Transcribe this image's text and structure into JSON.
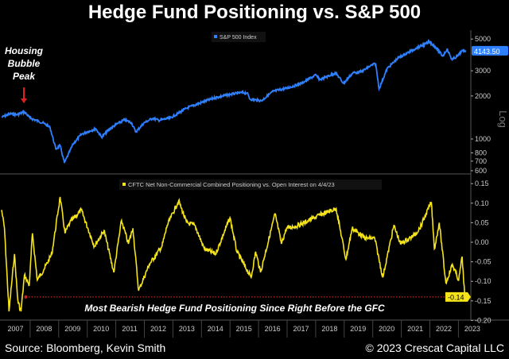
{
  "title": "Hedge Fund Positioning vs. S&P 500",
  "source": "Source: Bloomberg, Kevin Smith",
  "copyright": "© 2023 Crescat Capital LLC",
  "chart_data": [
    {
      "type": "line",
      "panel": "top",
      "legend": "S&P 500 Index",
      "scale": "log",
      "scale_label": "Log",
      "y_ticks": [
        "5000",
        "3000",
        "2000",
        "1000",
        "800",
        "700",
        "600"
      ],
      "y_tick_values": [
        5000,
        3000,
        2000,
        1000,
        800,
        700,
        600
      ],
      "ylim": [
        580,
        5600
      ],
      "last_value_label": "4143.50",
      "color": "#2f80ff",
      "annotation": {
        "text_lines": [
          "Housing",
          "Bubble",
          "Peak"
        ],
        "x": 2007.8,
        "arrow_color": "#e02020"
      },
      "series": [
        {
          "x": [
            2007.0,
            2007.3,
            2007.55,
            2007.8,
            2008.0,
            2008.3,
            2008.5,
            2008.7,
            2008.9,
            2009.05,
            2009.2,
            2009.5,
            2009.8,
            2010.0,
            2010.3,
            2010.5,
            2010.8,
            2011.0,
            2011.3,
            2011.55,
            2011.7,
            2012.0,
            2012.3,
            2012.5,
            2012.9,
            2013.2,
            2013.5,
            2014.0,
            2014.5,
            2015.0,
            2015.4,
            2015.6,
            2015.7,
            2016.1,
            2016.5,
            2017.0,
            2017.5,
            2018.0,
            2018.15,
            2018.7,
            2018.98,
            2019.3,
            2019.6,
            2019.9,
            2020.1,
            2020.22,
            2020.5,
            2020.9,
            2021.5,
            2021.99,
            2022.2,
            2022.45,
            2022.6,
            2022.78,
            2023.0,
            2023.1,
            2023.27
          ],
          "y": [
            1420,
            1500,
            1480,
            1550,
            1400,
            1330,
            1280,
            1200,
            850,
            900,
            680,
            920,
            1080,
            1120,
            1180,
            1030,
            1180,
            1260,
            1360,
            1300,
            1120,
            1300,
            1400,
            1350,
            1400,
            1520,
            1650,
            1800,
            1950,
            2050,
            2110,
            2100,
            1900,
            1850,
            2150,
            2270,
            2450,
            2800,
            2600,
            2900,
            2450,
            2900,
            2950,
            3230,
            3380,
            2240,
            3100,
            3700,
            4300,
            4770,
            4400,
            3800,
            4250,
            3580,
            3850,
            4100,
            4143.5
          ]
        }
      ]
    },
    {
      "type": "line",
      "panel": "bottom",
      "legend": "CFTC Net Non-Commercial Combined Positioning vs. Open Interest on 4/4/23",
      "y_ticks": [
        "0.15",
        "0.10",
        "0.05",
        "0.00",
        "-0.05",
        "-0.10",
        "-0.15",
        "-0.20"
      ],
      "y_tick_values": [
        0.15,
        0.1,
        0.05,
        0.0,
        -0.05,
        -0.1,
        -0.15,
        -0.2
      ],
      "ylim": [
        -0.2,
        0.15
      ],
      "last_value_label": "-0.14",
      "color": "#f5e41a",
      "reference_line": {
        "y": -0.14,
        "x_start": 2007.85,
        "color": "#d02020",
        "style": "dotted"
      },
      "annotation_text": "Most Bearish Hedge Fund Positioning Since Right Before the GFC",
      "series": [
        {
          "x": [
            2007.0,
            2007.1,
            2007.26,
            2007.45,
            2007.57,
            2007.68,
            2007.8,
            2007.97,
            2008.08,
            2008.25,
            2008.48,
            2008.76,
            2009.05,
            2009.22,
            2009.39,
            2009.79,
            2010.02,
            2010.25,
            2010.59,
            2010.93,
            2011.2,
            2011.44,
            2011.6,
            2011.8,
            2012.17,
            2012.62,
            2012.8,
            2013.2,
            2013.48,
            2013.77,
            2014.1,
            2014.5,
            2015.0,
            2015.24,
            2015.74,
            2015.9,
            2016.07,
            2016.58,
            2016.8,
            2016.98,
            2017.37,
            2017.6,
            2018.15,
            2018.72,
            2019.06,
            2019.28,
            2019.74,
            2020.07,
            2020.35,
            2020.74,
            2020.97,
            2021.42,
            2021.65,
            2022.05,
            2022.16,
            2022.33,
            2022.56,
            2022.79,
            2023.01,
            2023.13,
            2023.22,
            2023.27
          ],
          "y": [
            0.083,
            0.036,
            -0.177,
            -0.03,
            -0.15,
            -0.177,
            -0.084,
            -0.11,
            0.023,
            -0.097,
            -0.07,
            -0.03,
            0.116,
            0.023,
            0.05,
            0.083,
            0.036,
            -0.01,
            0.03,
            -0.077,
            0.056,
            -0.004,
            0.036,
            -0.124,
            -0.057,
            -0.01,
            0.043,
            0.106,
            0.05,
            0.043,
            -0.017,
            -0.03,
            0.063,
            -0.024,
            -0.09,
            -0.024,
            -0.077,
            0.073,
            -0.004,
            0.036,
            0.043,
            0.05,
            0.07,
            0.086,
            -0.044,
            0.036,
            0.01,
            0.01,
            -0.09,
            0.043,
            -0.004,
            0.016,
            0.036,
            0.103,
            -0.017,
            0.05,
            -0.104,
            -0.057,
            -0.097,
            -0.037,
            -0.137,
            -0.14
          ]
        }
      ]
    }
  ],
  "x_axis": {
    "ticks": [
      "2007",
      "2008",
      "2009",
      "2010",
      "2011",
      "2012",
      "2013",
      "2014",
      "2015",
      "2016",
      "2017",
      "2018",
      "2019",
      "2020",
      "2021",
      "2022",
      "2023"
    ]
  }
}
